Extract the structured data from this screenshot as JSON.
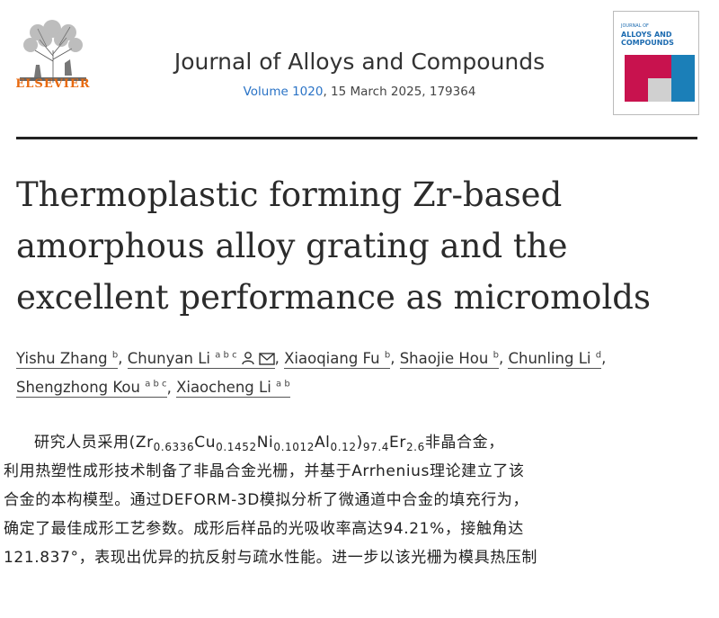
{
  "header": {
    "publisher": "ELSEVIER",
    "journal": "Journal of Alloys and Compounds",
    "volume": "Volume 1020",
    "issue_rest": ", 15 March 2025, 179364",
    "cover": {
      "line1": "JOURNAL OF",
      "line2": "ALLOYS AND",
      "line3": "COMPOUNDS",
      "tiles": [
        "#c8124e",
        "#1b7fb8",
        "#c8124e",
        "#d0d0d0",
        "#1b7fb8",
        "#c8124e"
      ]
    }
  },
  "article": {
    "title_lines": [
      "Thermoplastic forming Zr-based",
      "amorphous alloy grating and the",
      "excellent performance as micromolds"
    ],
    "authors": [
      {
        "name": "Yishu Zhang",
        "sup": "b"
      },
      {
        "name": "Chunyan Li",
        "sup": "a b c"
      },
      {
        "name": "Xiaoqiang Fu",
        "sup": "b"
      },
      {
        "name": "Shaojie Hou",
        "sup": "b"
      },
      {
        "name": "Chunling Li",
        "sup": "d"
      },
      {
        "name": "Shengzhong Kou",
        "sup": "a b c"
      },
      {
        "name": "Xiaocheng Li",
        "sup": "a b"
      }
    ]
  },
  "abstract": {
    "p1_prefix": "研究人员采用(Zr",
    "s1": "0.6336",
    "t1": "Cu",
    "s2": "0.1452",
    "t2": "Ni",
    "s3": "0.1012",
    "t3": "Al",
    "s4": "0.12",
    "t4": ")",
    "s5": "97.4",
    "t5": "Er",
    "s6": "2.6",
    "t6": "非晶合金，",
    "line2": "利用热塑性成形技术制备了非晶合金光栅，并基于Arrhenius理论建立了该",
    "line3": "合金的本构模型。通过DEFORM-3D模拟分析了微通道中合金的填充行为，",
    "line4": "确定了最佳成形工艺参数。成形后样品的光吸收率高达94.21%，接触角达",
    "line5": "121.837°，表现出优异的抗反射与疏水性能。进一步以该光栅为模具热压制"
  }
}
